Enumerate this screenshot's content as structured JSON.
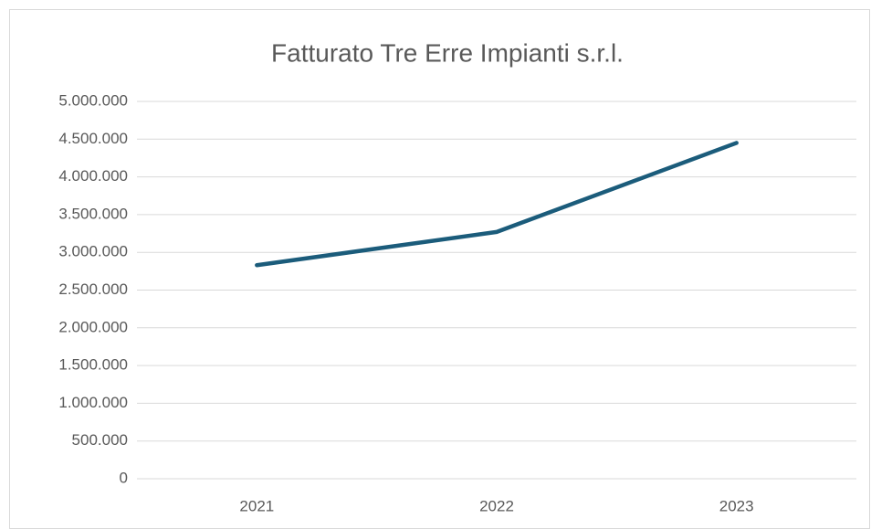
{
  "chart_data": {
    "type": "line",
    "title": "Fatturato Tre  Erre Impianti s.r.l.",
    "categories": [
      "2021",
      "2022",
      "2023"
    ],
    "values": [
      2830000,
      3270000,
      4450000
    ],
    "color": "#1b5c7b",
    "ylim": [
      0,
      5000000
    ],
    "yticks": [
      0,
      {
        "value": 500000,
        "label": "500.000"
      },
      {
        "value": 1000000,
        "label": "1.000.000"
      },
      {
        "value": 1500000,
        "label": "1.500.000"
      },
      {
        "value": 2000000,
        "label": "2.000.000"
      },
      {
        "value": 2500000,
        "label": "2.500.000"
      },
      {
        "value": 3000000,
        "label": "3.000.000"
      },
      {
        "value": 3500000,
        "label": "3.500.000"
      },
      {
        "value": 4000000,
        "label": "4.000.000"
      },
      {
        "value": 4500000,
        "label": "4.500.000"
      },
      {
        "value": 5000000,
        "label": "5.000.000"
      }
    ],
    "grid": true
  }
}
